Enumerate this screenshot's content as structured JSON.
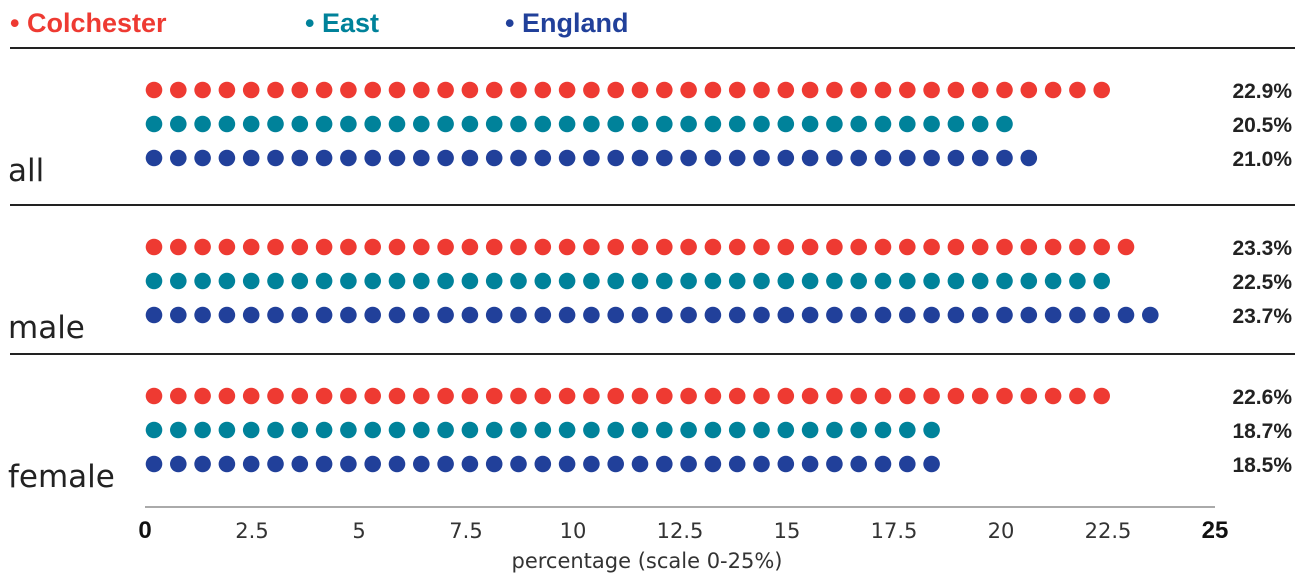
{
  "chart_data": {
    "type": "dot-bar",
    "xlabel": "percentage (scale 0-25%)",
    "xlim": [
      0,
      25
    ],
    "ticks": [
      {
        "value": 0,
        "label": "0",
        "bold": true
      },
      {
        "value": 2.5,
        "label": "2.5",
        "bold": false
      },
      {
        "value": 5,
        "label": "5",
        "bold": false
      },
      {
        "value": 7.5,
        "label": "7.5",
        "bold": false
      },
      {
        "value": 10,
        "label": "10",
        "bold": false
      },
      {
        "value": 12.5,
        "label": "12.5",
        "bold": false
      },
      {
        "value": 15,
        "label": "15",
        "bold": false
      },
      {
        "value": 17.5,
        "label": "17.5",
        "bold": false
      },
      {
        "value": 20,
        "label": "20",
        "bold": false
      },
      {
        "value": 22.5,
        "label": "22.5",
        "bold": false
      },
      {
        "value": 25,
        "label": "25",
        "bold": true
      }
    ],
    "legend": [
      {
        "label": "• Colchester",
        "color": "#ee3a32"
      },
      {
        "label": "• East",
        "color": "#00829a"
      },
      {
        "label": "• England",
        "color": "#21409a"
      }
    ],
    "categories": [
      "all",
      "male",
      "female"
    ],
    "series": [
      {
        "name": "Colchester",
        "color": "#ee3a32",
        "values": [
          22.9,
          23.3,
          22.6
        ],
        "labels": [
          "22.9%",
          "23.3%",
          "22.6%"
        ]
      },
      {
        "name": "East",
        "color": "#00829a",
        "values": [
          20.5,
          22.5,
          18.7
        ],
        "labels": [
          "20.5%",
          "22.5%",
          "18.7%"
        ]
      },
      {
        "name": "England",
        "color": "#21409a",
        "values": [
          21.0,
          23.7,
          18.5
        ],
        "labels": [
          "21.0%",
          "23.7%",
          "18.5%"
        ]
      }
    ]
  }
}
